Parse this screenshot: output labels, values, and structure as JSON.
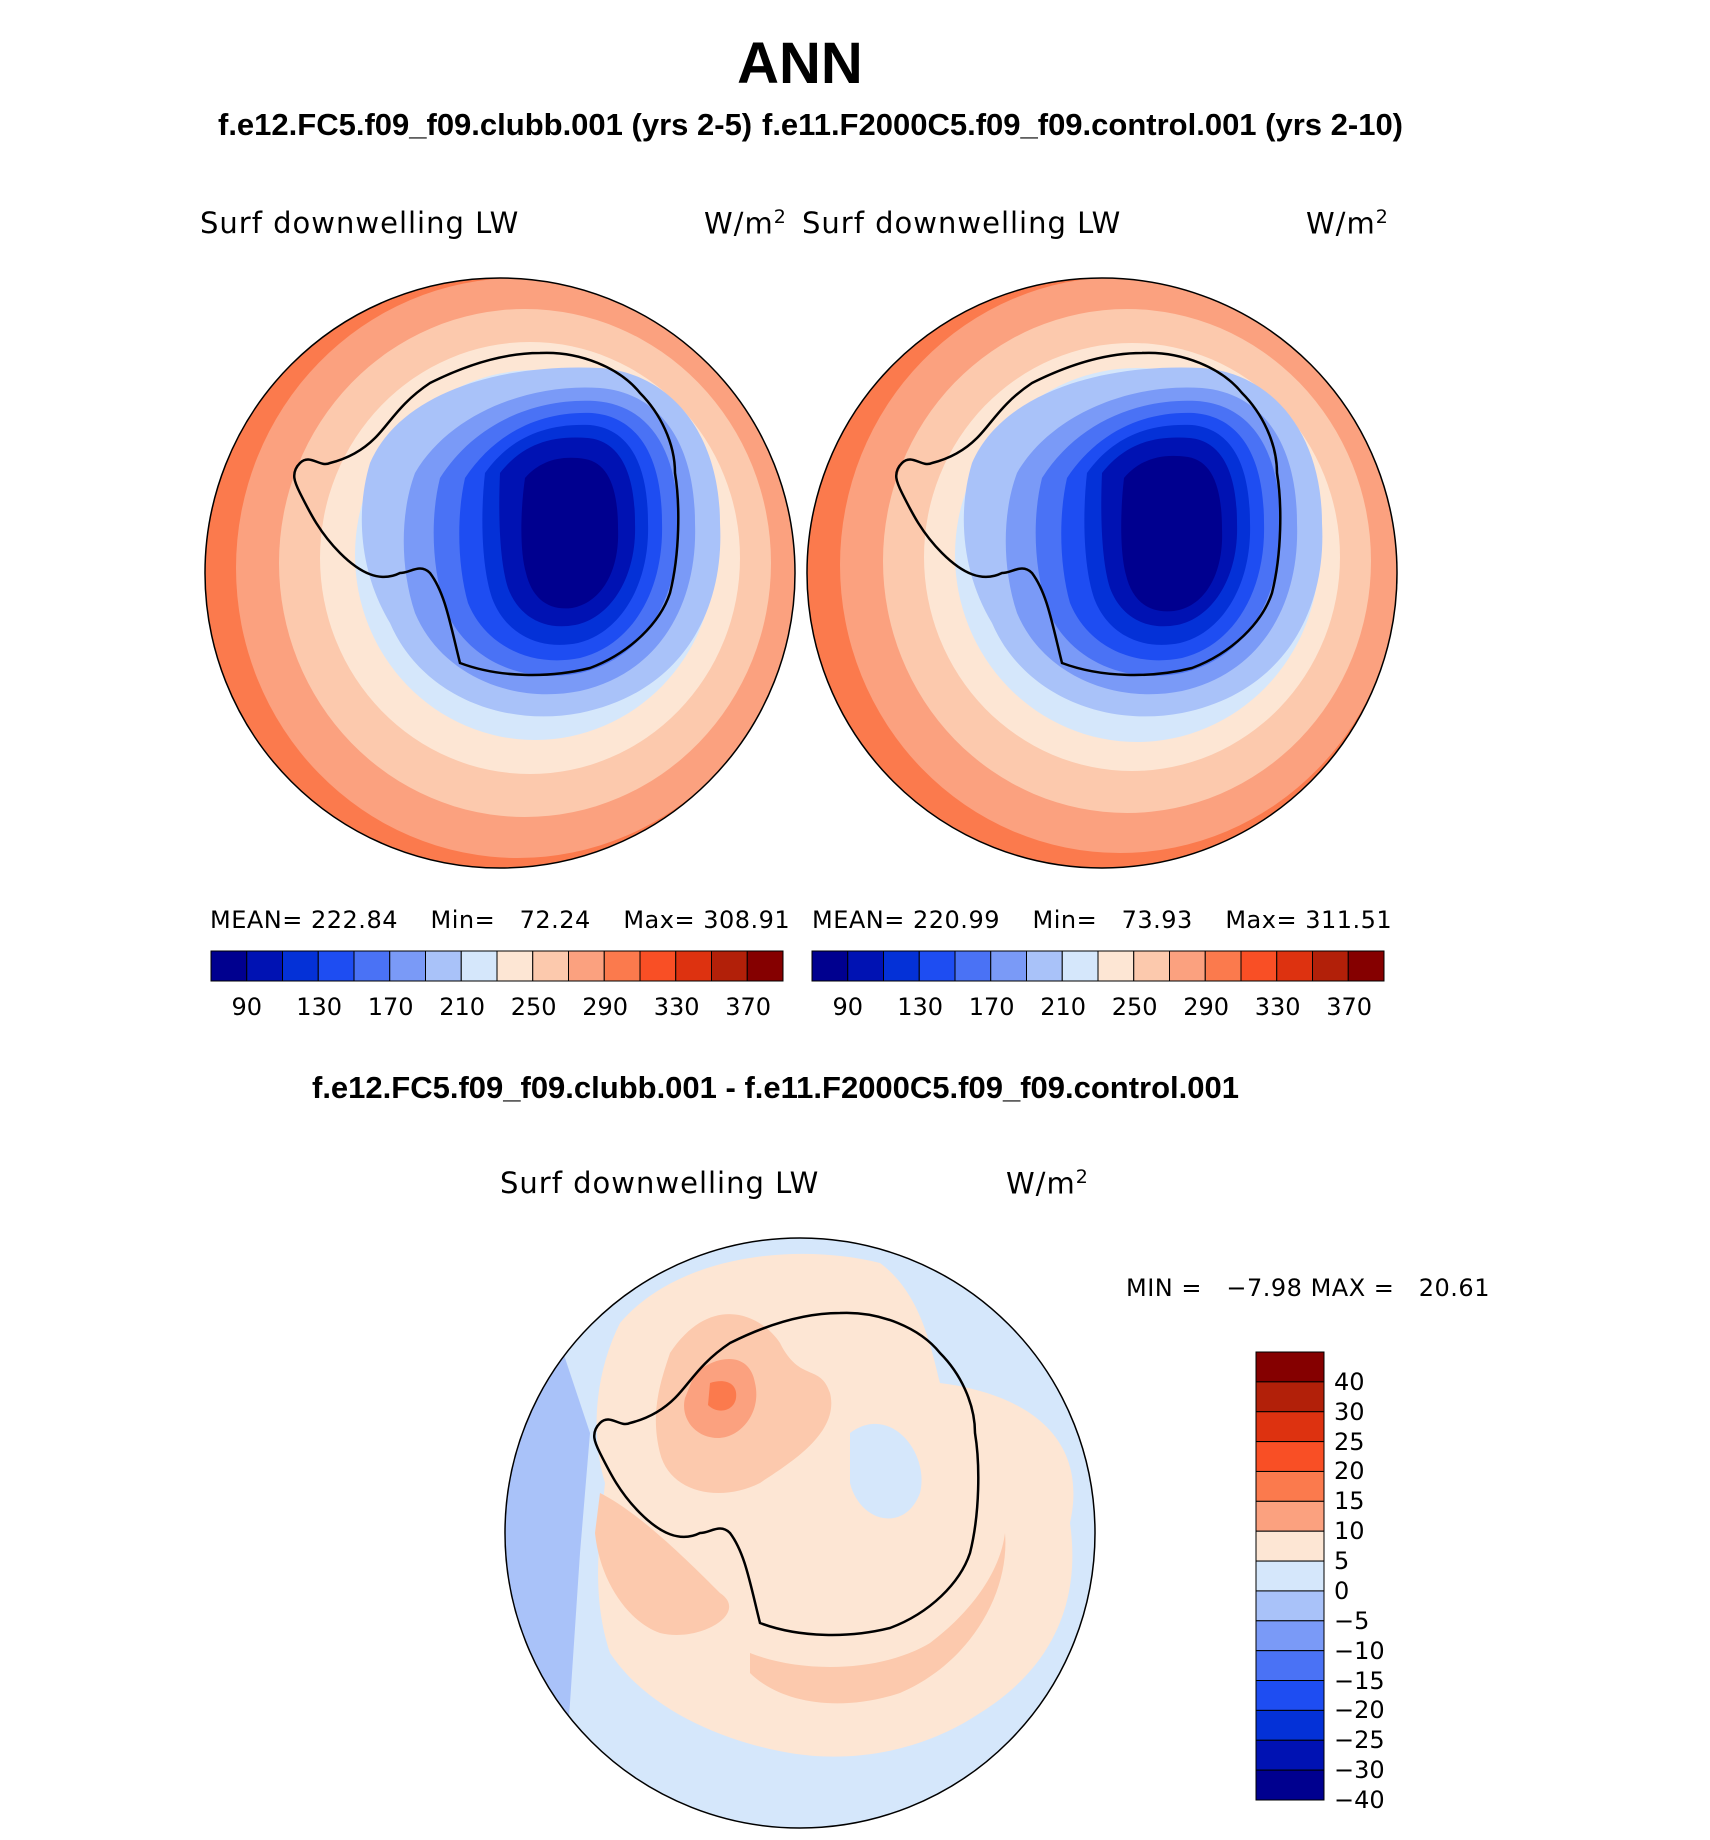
{
  "header": {
    "title": "ANN",
    "left_case": "f.e12.FC5.f09_f09.clubb.001 (yrs 2-5)",
    "right_case": "f.e11.F2000C5.f09_f09.control.001 (yrs 2-10)",
    "diff_case": "f.e12.FC5.f09_f09.clubb.001 - f.e11.F2000C5.f09_f09.control.001"
  },
  "panels": {
    "left": {
      "variable": "Surf downwelling LW",
      "units_base": "W/m",
      "units_exp": "2",
      "mean_label": "MEAN=",
      "mean": "222.84",
      "min_label": "Min=",
      "min": "72.24",
      "max_label": "Max=",
      "max": "308.91"
    },
    "right": {
      "variable": "Surf downwelling LW",
      "units_base": "W/m",
      "units_exp": "2",
      "mean_label": "MEAN=",
      "mean": "220.99",
      "min_label": "Min=",
      "min": "73.93",
      "max_label": "Max=",
      "max": "311.51"
    },
    "diff": {
      "variable": "Surf downwelling LW",
      "units_base": "W/m",
      "units_exp": "2",
      "min_label": "MIN =",
      "min": "−7.98",
      "max_label": "MAX =",
      "max": "20.61"
    }
  },
  "colorbar_abs": {
    "tick_labels": [
      "90",
      "130",
      "170",
      "210",
      "250",
      "290",
      "330",
      "370"
    ],
    "colors": [
      "#00008f",
      "#0012b3",
      "#0431d7",
      "#1e4df2",
      "#4a72f5",
      "#7a9af7",
      "#a9c2f9",
      "#d5e7fb",
      "#fde6d4",
      "#fcc9ad",
      "#fba17f",
      "#fb7a4d",
      "#f94f25",
      "#dd3210",
      "#b22009",
      "#850000"
    ]
  },
  "colorbar_diff": {
    "tick_labels": [
      "40",
      "30",
      "25",
      "20",
      "15",
      "10",
      "5",
      "0",
      "−5",
      "−10",
      "−15",
      "−20",
      "−25",
      "−30",
      "−40"
    ],
    "colors_top_to_bottom": [
      "#850000",
      "#b22009",
      "#dd3210",
      "#f94f25",
      "#fb7a4d",
      "#fba17f",
      "#fde6d4",
      "#d5e7fb",
      "#a9c2f9",
      "#7a9af7",
      "#4a72f5",
      "#1e4df2",
      "#0431d7",
      "#0012b3",
      "#00008f"
    ]
  }
}
